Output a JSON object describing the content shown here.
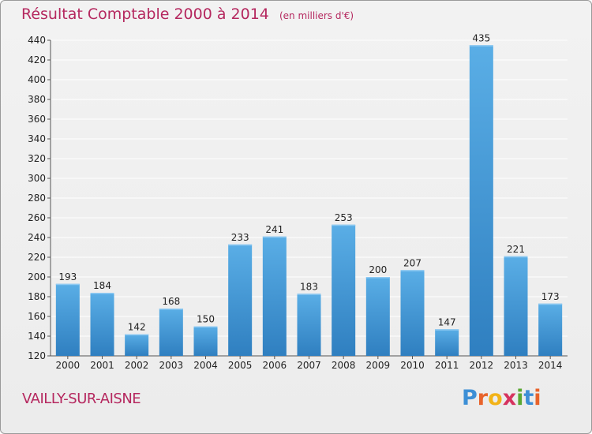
{
  "title": "Résultat Comptable 2000 à 2014",
  "unit": "(en milliers d'€)",
  "place": "VAILLY-SUR-AISNE",
  "logo": {
    "letters": [
      "P",
      "r",
      "o",
      "x",
      "i",
      "t",
      "i"
    ],
    "colors": [
      "#3d8fd6",
      "#e8632b",
      "#f2b318",
      "#d6335f",
      "#5aa832",
      "#3d8fd6",
      "#e8632b"
    ]
  },
  "colors": {
    "bar_top": "#5aaee6",
    "bar_bottom": "#2f7fc0",
    "title": "#b5285f",
    "grid": "#ffffff"
  },
  "chart_data": {
    "type": "bar",
    "title": "Résultat Comptable 2000 à 2014",
    "xlabel": "",
    "ylabel": "",
    "categories": [
      "2000",
      "2001",
      "2002",
      "2003",
      "2004",
      "2005",
      "2006",
      "2007",
      "2008",
      "2009",
      "2010",
      "2011",
      "2012",
      "2013",
      "2014"
    ],
    "values": [
      193,
      184,
      142,
      168,
      150,
      233,
      241,
      183,
      253,
      200,
      207,
      147,
      435,
      221,
      173
    ],
    "ylim": [
      120,
      440
    ],
    "yticks": [
      120,
      140,
      160,
      180,
      200,
      220,
      240,
      260,
      280,
      300,
      320,
      340,
      360,
      380,
      400,
      420,
      440
    ],
    "grid": true,
    "data_labels": true
  }
}
